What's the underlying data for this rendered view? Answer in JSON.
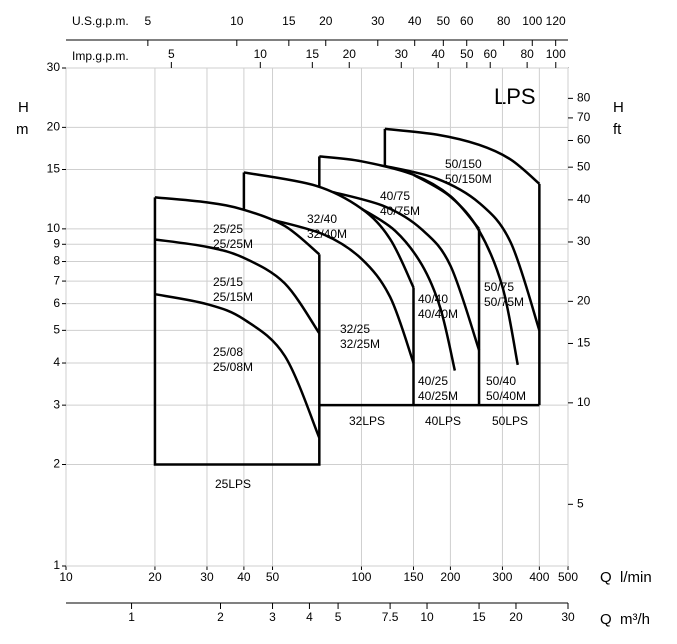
{
  "chart_data": {
    "type": "line",
    "title": "LPS",
    "log_x": true,
    "log_y": true,
    "grid": true,
    "xlabel": "Q",
    "xunit": "l/min",
    "xlim": [
      10,
      500
    ],
    "xticks": [
      10,
      20,
      30,
      40,
      50,
      100,
      150,
      200,
      300,
      400,
      500
    ],
    "ylabel": "H",
    "yunit": "m",
    "ylim": [
      1,
      30
    ],
    "yticks": [
      1,
      2,
      3,
      4,
      5,
      6,
      7,
      8,
      9,
      10,
      15,
      20,
      30
    ],
    "y2label": "H",
    "y2unit": "ft",
    "y2lim": [
      3.281,
      98.43
    ],
    "y2ticks": [
      5,
      10,
      15,
      20,
      30,
      40,
      50,
      60,
      70,
      80
    ],
    "secondary_x": [
      {
        "label": "U.S.g.p.m.",
        "xlim": [
          2.642,
          132.1
        ],
        "xticks": [
          5,
          10,
          15,
          20,
          30,
          40,
          50,
          60,
          80,
          100,
          120
        ]
      },
      {
        "label": "Imp.g.p.m.",
        "xlim": [
          2.2,
          110
        ],
        "xticks": [
          5,
          10,
          15,
          20,
          30,
          40,
          50,
          60,
          80,
          100
        ]
      },
      {
        "label": "Q",
        "unit": "m³/h",
        "xlim": [
          0.6,
          30
        ],
        "xticks": [
          1,
          2,
          3,
          4,
          5,
          7.5,
          10,
          15,
          20,
          30
        ]
      }
    ],
    "group_labels": [
      "25LPS",
      "32LPS",
      "40LPS",
      "50LPS"
    ],
    "series": [
      {
        "name": "25/25",
        "model": "25/25M",
        "color": "#000000",
        "x": [
          20,
          30,
          40,
          55,
          72
        ],
        "values": [
          12.4,
          11.98,
          11.39,
          10.2,
          8.4
        ]
      },
      {
        "name": "25/15",
        "model": "25/15M",
        "color": "#000000",
        "x": [
          20,
          30,
          40,
          55,
          72
        ],
        "values": [
          9.3,
          8.84,
          8.2,
          6.89,
          4.9
        ]
      },
      {
        "name": "25/08",
        "model": "25/08M",
        "color": "#000000",
        "x": [
          20,
          30,
          40,
          55,
          72
        ],
        "values": [
          6.4,
          5.98,
          5.39,
          4.2,
          2.4
        ]
      },
      {
        "name": "32/40",
        "model": "32/40M",
        "color": "#000000",
        "x": [
          40,
          70,
          100,
          125,
          150
        ],
        "values": [
          14.7,
          13.43,
          11.48,
          9.33,
          6.7
        ]
      },
      {
        "name": "32/25",
        "model": "32/25M",
        "color": "#000000",
        "x": [
          50,
          75,
          100,
          125,
          150
        ],
        "values": [
          10.64,
          9.6,
          8.15,
          6.28,
          4.0
        ]
      },
      {
        "name": "40/75",
        "model": "40/75M",
        "color": "#000000",
        "x": [
          72,
          100,
          150,
          200,
          250
        ],
        "values": [
          16.4,
          15.86,
          14.47,
          12.51,
          10.0
        ]
      },
      {
        "name": "40/40",
        "model": "40/40M",
        "color": "#000000",
        "x": [
          80,
          120,
          160,
          200,
          250
        ],
        "values": [
          12.86,
          11.65,
          9.96,
          7.78,
          4.37
        ]
      },
      {
        "name": "40/25",
        "model": "40/25M",
        "color": "#000000",
        "x": [
          100,
          130,
          160,
          185,
          207
        ],
        "values": [
          11.48,
          9.87,
          7.83,
          5.81,
          3.8
        ]
      },
      {
        "name": "50/150",
        "model": "50/150M",
        "color": "#000000",
        "x": [
          120,
          180,
          250,
          320,
          400
        ],
        "values": [
          19.8,
          19.03,
          17.75,
          16.05,
          13.6
        ]
      },
      {
        "name": "50/75",
        "model": "50/75M",
        "color": "#000000",
        "x": [
          120,
          180,
          250,
          320,
          400
        ],
        "values": [
          15.37,
          14.09,
          11.95,
          9.11,
          5.0
        ]
      },
      {
        "name": "50/40",
        "model": "50/40M",
        "color": "#000000",
        "x": [
          150,
          200,
          250,
          300,
          338
        ],
        "values": [
          14.47,
          12.46,
          9.88,
          6.73,
          3.95
        ]
      }
    ],
    "outlines": [
      {
        "x": [
          20,
          20,
          72,
          72
        ],
        "values": [
          12.4,
          2,
          2,
          8.4
        ]
      },
      {
        "x": [
          72,
          400
        ],
        "values": [
          3,
          3
        ]
      },
      {
        "x": [
          40,
          40
        ],
        "values": [
          14.7,
          11.39
        ]
      },
      {
        "x": [
          72,
          72
        ],
        "values": [
          16.4,
          13.3
        ]
      },
      {
        "x": [
          120,
          120
        ],
        "values": [
          19.8,
          15.4
        ]
      },
      {
        "x": [
          150,
          150
        ],
        "values": [
          6.7,
          3
        ]
      },
      {
        "x": [
          250,
          250
        ],
        "values": [
          10,
          3
        ]
      },
      {
        "x": [
          400,
          400
        ],
        "values": [
          13.6,
          3
        ]
      }
    ]
  }
}
